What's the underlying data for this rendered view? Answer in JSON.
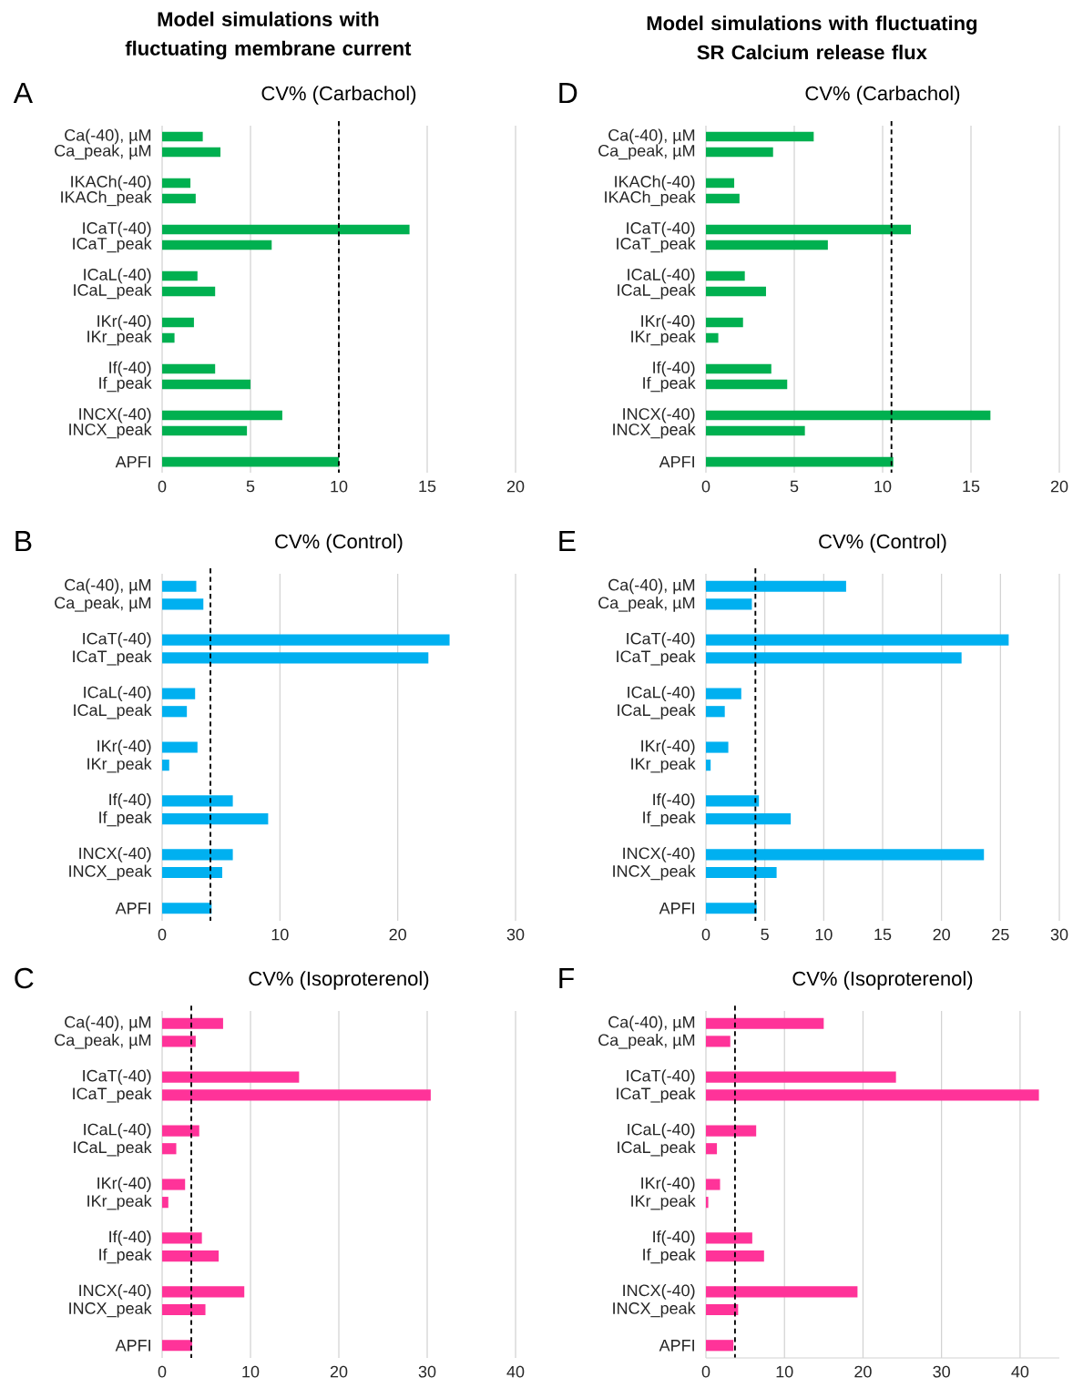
{
  "chart_data": [
    {
      "type": "bar",
      "orientation": "horizontal",
      "title": "CV% (Carbachol)",
      "annotations": [
        "A",
        "Model simulations with fluctuating membrane current"
      ],
      "categories": [
        "Ca(-40), µM",
        "Ca_peak, µM",
        "IKACh(-40)",
        "IKACh_peak",
        "ICaT(-40)",
        "ICaT_peak",
        "ICaL(-40)",
        "ICaL_peak",
        "IKr(-40)",
        "IKr_peak",
        "If(-40)",
        "If_peak",
        "INCX(-40)",
        "INCX_peak",
        "APFI"
      ],
      "values": [
        2.3,
        3.3,
        1.6,
        1.9,
        14.0,
        6.2,
        2.0,
        3.0,
        1.8,
        0.7,
        3.0,
        5.0,
        6.8,
        4.8,
        10.0
      ],
      "color": "#00b050",
      "xlim": [
        0,
        20
      ],
      "xticks": [
        0,
        5,
        10,
        15,
        20
      ],
      "grid": "x",
      "ref_lines": [
        {
          "axis": "x",
          "value": 10,
          "color": "#000000",
          "line_style": "dashed"
        }
      ]
    },
    {
      "type": "bar",
      "orientation": "horizontal",
      "title": "CV% (Carbachol)",
      "annotations": [
        "D",
        "Model simulations with fluctuating SR Calcium release flux"
      ],
      "categories": [
        "Ca(-40), µM",
        "Ca_peak, µM",
        "IKACh(-40)",
        "IKACh_peak",
        "ICaT(-40)",
        "ICaT_peak",
        "ICaL(-40)",
        "ICaL_peak",
        "IKr(-40)",
        "IKr_peak",
        "If(-40)",
        "If_peak",
        "INCX(-40)",
        "INCX_peak",
        "APFI"
      ],
      "values": [
        6.1,
        3.8,
        1.6,
        1.9,
        11.6,
        6.9,
        2.2,
        3.4,
        2.1,
        0.7,
        3.7,
        4.6,
        16.1,
        5.6,
        10.6
      ],
      "color": "#00b050",
      "xlim": [
        0,
        20
      ],
      "xticks": [
        0,
        5,
        10,
        15,
        20
      ],
      "grid": "x",
      "ref_lines": [
        {
          "axis": "x",
          "value": 10.5,
          "color": "#000000",
          "line_style": "dashed"
        }
      ]
    },
    {
      "type": "bar",
      "orientation": "horizontal",
      "title": "CV% (Control)",
      "annotations": [
        "B"
      ],
      "categories": [
        "Ca(-40), µM",
        "Ca_peak, µM",
        "ICaT(-40)",
        "ICaT_peak",
        "ICaL(-40)",
        "ICaL_peak",
        "IKr(-40)",
        "IKr_peak",
        "If(-40)",
        "If_peak",
        "INCX(-40)",
        "INCX_peak",
        "APFI"
      ],
      "values": [
        2.9,
        3.5,
        24.4,
        22.6,
        2.8,
        2.1,
        3.0,
        0.6,
        6.0,
        9.0,
        6.0,
        5.1,
        4.2
      ],
      "color": "#00b0f0",
      "xlim": [
        0,
        30
      ],
      "xticks": [
        0,
        10,
        20,
        30
      ],
      "grid": "x",
      "ref_lines": [
        {
          "axis": "x",
          "value": 4.1,
          "color": "#000000",
          "line_style": "dashed"
        }
      ]
    },
    {
      "type": "bar",
      "orientation": "horizontal",
      "title": "CV% (Control)",
      "annotations": [
        "E"
      ],
      "categories": [
        "Ca(-40), µM",
        "Ca_peak, µM",
        "ICaT(-40)",
        "ICaT_peak",
        "ICaL(-40)",
        "ICaL_peak",
        "IKr(-40)",
        "IKr_peak",
        "If(-40)",
        "If_peak",
        "INCX(-40)",
        "INCX_peak",
        "APFI"
      ],
      "values": [
        11.9,
        3.9,
        25.7,
        21.7,
        3.0,
        1.6,
        1.9,
        0.4,
        4.5,
        7.2,
        23.6,
        6.0,
        4.3
      ],
      "color": "#00b0f0",
      "xlim": [
        0,
        30
      ],
      "xticks": [
        0,
        5,
        10,
        15,
        20,
        25,
        30
      ],
      "grid": "x",
      "ref_lines": [
        {
          "axis": "x",
          "value": 4.2,
          "color": "#000000",
          "line_style": "dashed"
        }
      ]
    },
    {
      "type": "bar",
      "orientation": "horizontal",
      "title": "CV% (Isoproterenol)",
      "annotations": [
        "C"
      ],
      "categories": [
        "Ca(-40), µM",
        "Ca_peak, µM",
        "ICaT(-40)",
        "ICaT_peak",
        "ICaL(-40)",
        "ICaL_peak",
        "IKr(-40)",
        "IKr_peak",
        "If(-40)",
        "If_peak",
        "INCX(-40)",
        "INCX_peak",
        "APFI"
      ],
      "values": [
        6.9,
        3.8,
        15.5,
        30.4,
        4.2,
        1.6,
        2.6,
        0.7,
        4.5,
        6.4,
        9.3,
        4.9,
        3.4
      ],
      "color": "#ff3399",
      "xlim": [
        0,
        40
      ],
      "xticks": [
        0,
        10,
        20,
        30,
        40
      ],
      "grid": "x",
      "ref_lines": [
        {
          "axis": "x",
          "value": 3.3,
          "color": "#000000",
          "line_style": "dashed"
        }
      ]
    },
    {
      "type": "bar",
      "orientation": "horizontal",
      "title": "CV% (Isoproterenol)",
      "annotations": [
        "F"
      ],
      "categories": [
        "Ca(-40), µM",
        "Ca_peak, µM",
        "ICaT(-40)",
        "ICaT_peak",
        "ICaL(-40)",
        "ICaL_peak",
        "IKr(-40)",
        "IKr_peak",
        "If(-40)",
        "If_peak",
        "INCX(-40)",
        "INCX_peak",
        "APFI"
      ],
      "values": [
        15.0,
        3.1,
        24.2,
        42.4,
        6.4,
        1.4,
        1.8,
        0.3,
        5.9,
        7.4,
        19.3,
        4.1,
        3.5
      ],
      "color": "#ff3399",
      "xlim": [
        0,
        45
      ],
      "xticks": [
        0,
        10,
        20,
        30,
        40
      ],
      "grid": "x",
      "ref_lines": [
        {
          "axis": "x",
          "value": 3.7,
          "color": "#000000",
          "line_style": "dashed"
        }
      ]
    }
  ]
}
